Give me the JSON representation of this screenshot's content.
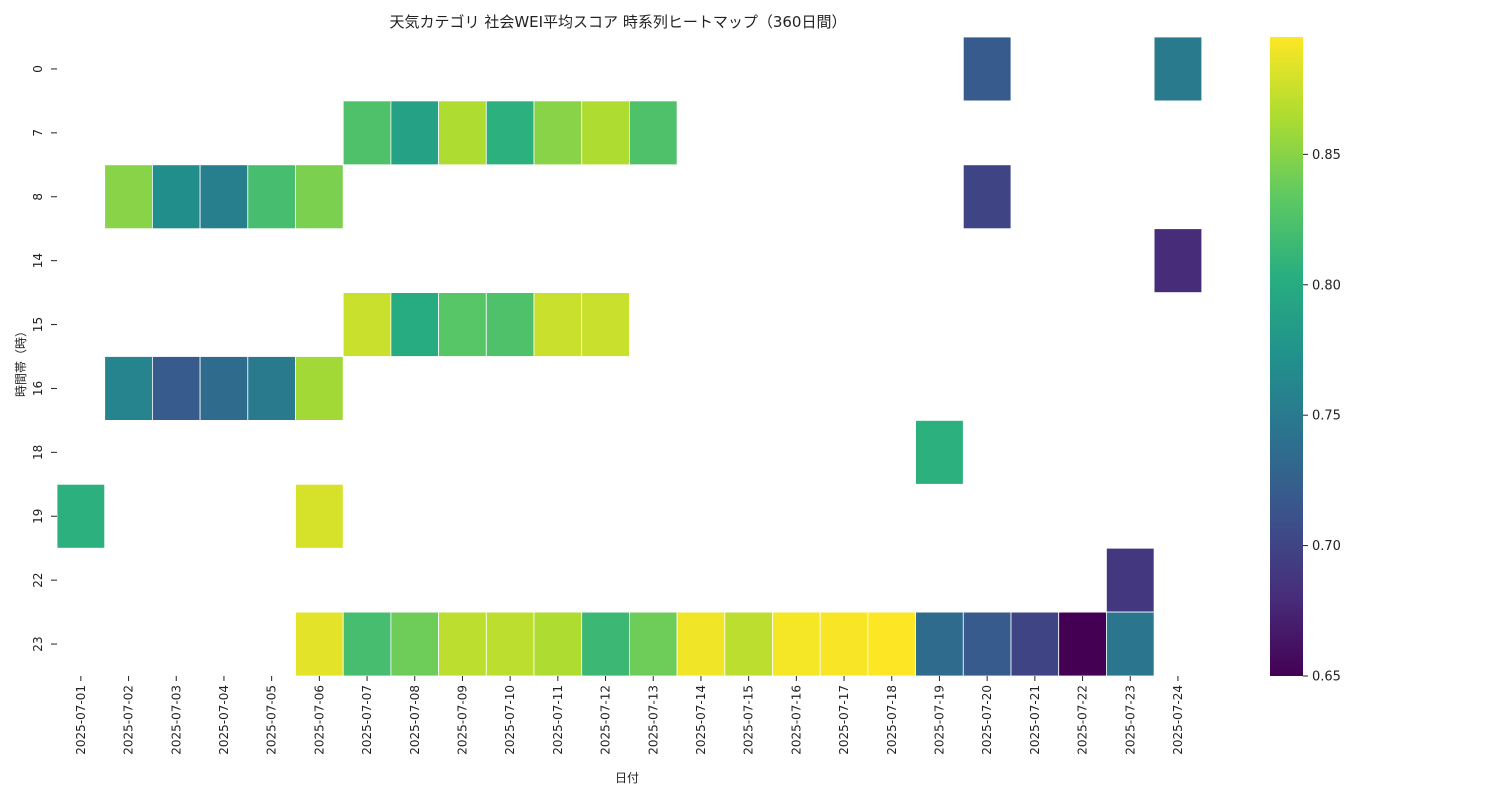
{
  "chart_data": {
    "type": "heatmap",
    "title": "天気カテゴリ 社会WEI平均スコア 時系列ヒートマップ（360日間）",
    "xlabel": "日付",
    "ylabel": "時間帯（時）",
    "x_categories": [
      "2025-07-01",
      "2025-07-02",
      "2025-07-03",
      "2025-07-04",
      "2025-07-05",
      "2025-07-06",
      "2025-07-07",
      "2025-07-08",
      "2025-07-09",
      "2025-07-10",
      "2025-07-11",
      "2025-07-12",
      "2025-07-13",
      "2025-07-14",
      "2025-07-15",
      "2025-07-16",
      "2025-07-17",
      "2025-07-18",
      "2025-07-19",
      "2025-07-20",
      "2025-07-21",
      "2025-07-22",
      "2025-07-23",
      "2025-07-24"
    ],
    "y_categories": [
      "0",
      "7",
      "8",
      "14",
      "15",
      "16",
      "18",
      "19",
      "22",
      "23"
    ],
    "colormap": "viridis",
    "colorbar": {
      "range": [
        0.65,
        0.895
      ],
      "ticks": [
        "0.65",
        "0.70",
        "0.75",
        "0.80",
        "0.85"
      ]
    },
    "values": [
      [
        null,
        null,
        null,
        null,
        null,
        null,
        null,
        null,
        null,
        null,
        null,
        null,
        null,
        null,
        null,
        null,
        null,
        null,
        null,
        0.72,
        null,
        null,
        null,
        0.75
      ],
      [
        null,
        null,
        null,
        null,
        null,
        null,
        0.825,
        0.79,
        0.865,
        0.805,
        0.85,
        0.865,
        0.825,
        null,
        null,
        null,
        null,
        null,
        null,
        null,
        null,
        null,
        null,
        null
      ],
      [
        null,
        0.85,
        0.77,
        0.755,
        0.82,
        0.845,
        null,
        null,
        null,
        null,
        null,
        null,
        null,
        null,
        null,
        null,
        null,
        null,
        null,
        0.7,
        null,
        null,
        null,
        null
      ],
      [
        null,
        null,
        null,
        null,
        null,
        null,
        null,
        null,
        null,
        null,
        null,
        null,
        null,
        null,
        null,
        null,
        null,
        null,
        null,
        null,
        null,
        null,
        null,
        0.68
      ],
      [
        null,
        null,
        null,
        null,
        null,
        null,
        0.875,
        0.8,
        0.83,
        0.825,
        0.875,
        0.875,
        null,
        null,
        null,
        null,
        null,
        null,
        null,
        null,
        null,
        null,
        null,
        null
      ],
      [
        null,
        0.76,
        0.72,
        0.735,
        0.75,
        0.86,
        null,
        null,
        null,
        null,
        null,
        null,
        null,
        null,
        null,
        null,
        null,
        null,
        null,
        null,
        null,
        null,
        null,
        null
      ],
      [
        null,
        null,
        null,
        null,
        null,
        null,
        null,
        null,
        null,
        null,
        null,
        null,
        null,
        null,
        null,
        null,
        null,
        null,
        0.805,
        null,
        null,
        null,
        null,
        null
      ],
      [
        0.805,
        null,
        null,
        null,
        null,
        0.88,
        null,
        null,
        null,
        null,
        null,
        null,
        null,
        null,
        null,
        null,
        null,
        null,
        null,
        null,
        null,
        null,
        null,
        null
      ],
      [
        null,
        null,
        null,
        null,
        null,
        null,
        null,
        null,
        null,
        null,
        null,
        null,
        null,
        null,
        null,
        null,
        null,
        null,
        null,
        null,
        null,
        null,
        0.69,
        null
      ],
      [
        null,
        null,
        null,
        null,
        null,
        0.885,
        0.82,
        0.84,
        0.87,
        0.87,
        0.865,
        0.815,
        0.84,
        0.89,
        0.87,
        0.892,
        0.893,
        0.895,
        0.735,
        0.72,
        0.7,
        0.65,
        0.745,
        null
      ]
    ]
  }
}
